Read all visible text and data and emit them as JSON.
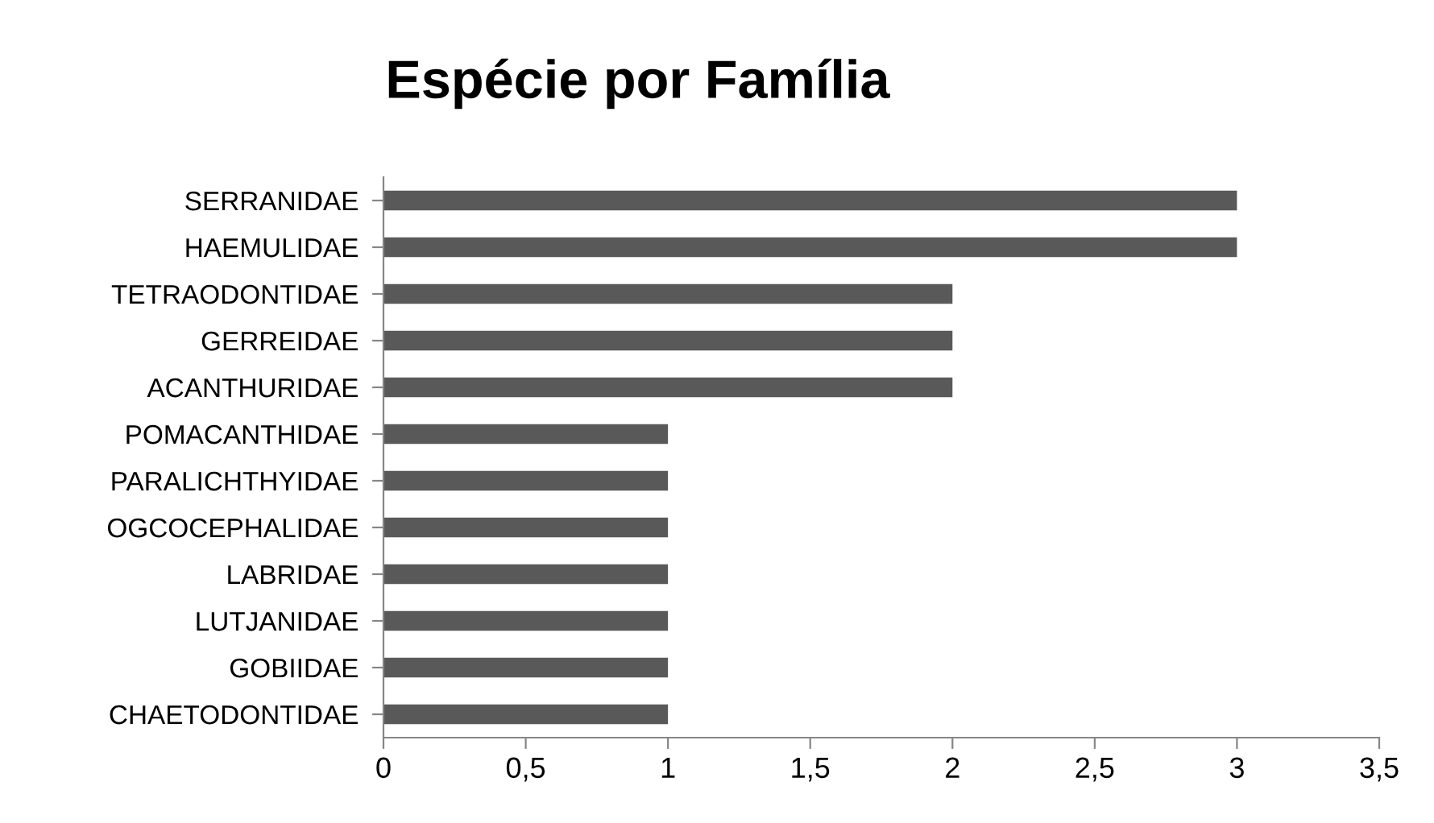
{
  "chart_data": {
    "type": "bar",
    "orientation": "horizontal",
    "title": "Espécie por Família",
    "categories": [
      "SERRANIDAE",
      "HAEMULIDAE",
      "TETRAODONTIDAE",
      "GERREIDAE",
      "ACANTHURIDAE",
      "POMACANTHIDAE",
      "PARALICHTHYIDAE",
      "OGCOCEPHALIDAE",
      "LABRIDAE",
      "LUTJANIDAE",
      "GOBIIDAE",
      "CHAETODONTIDAE"
    ],
    "values": [
      3,
      3,
      2,
      2,
      2,
      1,
      1,
      1,
      1,
      1,
      1,
      1
    ],
    "color": "#595959",
    "xlim": [
      0,
      3.5
    ],
    "xticks": [
      0,
      {
        "value": 0.5,
        "label": "0,5"
      },
      1,
      {
        "value": 1.5,
        "label": "1,5"
      },
      2,
      {
        "value": 2.5,
        "label": "2,5"
      },
      3,
      {
        "value": 3.5,
        "label": "3,5"
      }
    ],
    "grid": false,
    "legend": false
  }
}
